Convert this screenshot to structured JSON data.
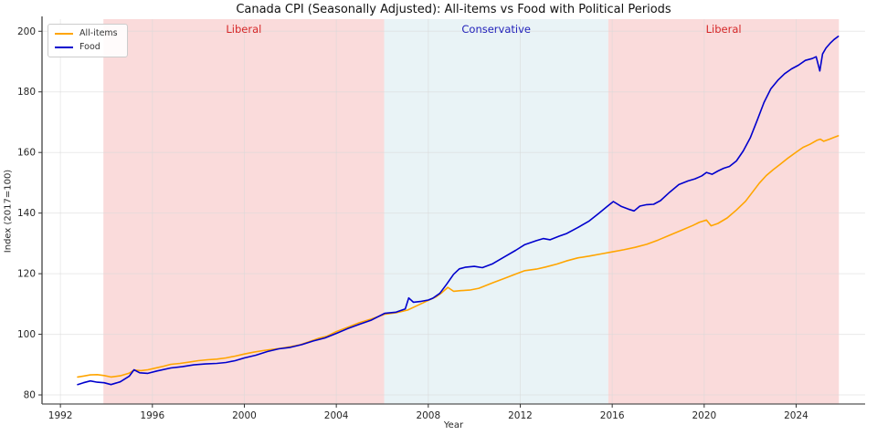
{
  "title": "Canada CPI (Seasonally Adjusted): All-items vs Food with Political Periods",
  "legend": {
    "items": [
      {
        "label": "All-items",
        "color": "#FFA500"
      },
      {
        "label": "Food",
        "color": "#0000CD"
      }
    ]
  },
  "axis": {
    "xlabel": "Year",
    "ylabel": "Index (2017=100)"
  },
  "colors": {
    "liberal_band": "#fadbdb",
    "conservative_band": "#e9f3f6",
    "liberal_text": "#d62728",
    "conservative_text": "#2222bb",
    "all_items_line": "#FFA500",
    "food_line": "#0000CD",
    "grid": "#d9d9d9",
    "spine": "#555555",
    "tick_text": "#262626"
  },
  "chart_data": {
    "type": "line",
    "title": "Canada CPI (Seasonally Adjusted): All-items vs Food with Political Periods",
    "xlabel": "Year",
    "ylabel": "Index (2017=100)",
    "xlim": [
      1991.2,
      2027.0
    ],
    "ylim": [
      77,
      204
    ],
    "x_ticks": [
      1992,
      1996,
      2000,
      2004,
      2008,
      2012,
      2016,
      2020,
      2024
    ],
    "y_ticks": [
      80,
      100,
      120,
      140,
      160,
      180,
      200
    ],
    "grid": true,
    "legend_position": "upper-left",
    "bands": [
      {
        "label": "Liberal",
        "start": 1993.87,
        "end": 2006.08,
        "fill": "#fadbdb",
        "label_color": "#d62728"
      },
      {
        "label": "Conservative",
        "start": 2006.08,
        "end": 2015.83,
        "fill": "#e9f3f6",
        "label_color": "#2222bb"
      },
      {
        "label": "Liberal",
        "start": 2015.83,
        "end": 2025.86,
        "fill": "#fadbdb",
        "label_color": "#d62728"
      }
    ],
    "series": [
      {
        "name": "All-items",
        "color": "#FFA500",
        "points": [
          [
            1992.75,
            85.9
          ],
          [
            1993.0,
            86.2
          ],
          [
            1993.3,
            86.6
          ],
          [
            1993.6,
            86.7
          ],
          [
            1993.9,
            86.4
          ],
          [
            1994.2,
            85.9
          ],
          [
            1994.6,
            86.3
          ],
          [
            1995.0,
            87.2
          ],
          [
            1995.2,
            88.2
          ],
          [
            1995.5,
            88.0
          ],
          [
            1995.8,
            88.3
          ],
          [
            1996.1,
            88.8
          ],
          [
            1996.5,
            89.5
          ],
          [
            1996.8,
            90.1
          ],
          [
            1997.2,
            90.4
          ],
          [
            1997.6,
            90.8
          ],
          [
            1998.0,
            91.3
          ],
          [
            1998.4,
            91.6
          ],
          [
            1998.8,
            91.8
          ],
          [
            1999.2,
            92.2
          ],
          [
            1999.6,
            92.8
          ],
          [
            2000.0,
            93.5
          ],
          [
            2000.4,
            94.1
          ],
          [
            2000.8,
            94.6
          ],
          [
            2001.2,
            95.0
          ],
          [
            2001.6,
            95.4
          ],
          [
            2002.0,
            95.9
          ],
          [
            2002.4,
            96.5
          ],
          [
            2002.8,
            97.5
          ],
          [
            2003.2,
            98.6
          ],
          [
            2003.6,
            99.4
          ],
          [
            2004.0,
            100.9
          ],
          [
            2004.5,
            102.3
          ],
          [
            2005.0,
            103.8
          ],
          [
            2005.5,
            105.0
          ],
          [
            2006.1,
            106.6
          ],
          [
            2006.6,
            107.1
          ],
          [
            2007.1,
            108.0
          ],
          [
            2007.5,
            109.4
          ],
          [
            2008.0,
            111.2
          ],
          [
            2008.35,
            112.4
          ],
          [
            2008.6,
            113.8
          ],
          [
            2008.85,
            115.5
          ],
          [
            2009.1,
            114.2
          ],
          [
            2009.4,
            114.4
          ],
          [
            2009.8,
            114.6
          ],
          [
            2010.2,
            115.2
          ],
          [
            2010.8,
            117.0
          ],
          [
            2011.3,
            118.4
          ],
          [
            2011.8,
            119.9
          ],
          [
            2012.2,
            121.0
          ],
          [
            2012.7,
            121.5
          ],
          [
            2013.1,
            122.2
          ],
          [
            2013.6,
            123.2
          ],
          [
            2014.0,
            124.2
          ],
          [
            2014.5,
            125.2
          ],
          [
            2015.0,
            125.8
          ],
          [
            2015.5,
            126.5
          ],
          [
            2016.0,
            127.2
          ],
          [
            2016.5,
            127.9
          ],
          [
            2017.0,
            128.7
          ],
          [
            2017.5,
            129.7
          ],
          [
            2018.0,
            131.1
          ],
          [
            2018.5,
            132.7
          ],
          [
            2019.0,
            134.3
          ],
          [
            2019.5,
            135.9
          ],
          [
            2019.8,
            137.0
          ],
          [
            2020.1,
            137.7
          ],
          [
            2020.3,
            135.8
          ],
          [
            2020.6,
            136.6
          ],
          [
            2021.0,
            138.4
          ],
          [
            2021.4,
            141.0
          ],
          [
            2021.8,
            143.9
          ],
          [
            2022.1,
            146.9
          ],
          [
            2022.4,
            149.9
          ],
          [
            2022.7,
            152.4
          ],
          [
            2023.0,
            154.3
          ],
          [
            2023.3,
            156.1
          ],
          [
            2023.6,
            157.9
          ],
          [
            2024.0,
            160.1
          ],
          [
            2024.3,
            161.7
          ],
          [
            2024.6,
            162.7
          ],
          [
            2024.9,
            164.0
          ],
          [
            2025.05,
            164.4
          ],
          [
            2025.2,
            163.7
          ],
          [
            2025.45,
            164.4
          ],
          [
            2025.65,
            165.0
          ],
          [
            2025.83,
            165.5
          ]
        ]
      },
      {
        "name": "Food",
        "color": "#0000CD",
        "points": [
          [
            1992.75,
            83.4
          ],
          [
            1993.0,
            84.0
          ],
          [
            1993.3,
            84.6
          ],
          [
            1993.6,
            84.2
          ],
          [
            1993.9,
            84.0
          ],
          [
            1994.2,
            83.4
          ],
          [
            1994.6,
            84.3
          ],
          [
            1995.0,
            86.2
          ],
          [
            1995.2,
            88.3
          ],
          [
            1995.45,
            87.3
          ],
          [
            1995.8,
            87.1
          ],
          [
            1996.2,
            87.9
          ],
          [
            1996.8,
            88.9
          ],
          [
            1997.3,
            89.3
          ],
          [
            1997.8,
            89.9
          ],
          [
            1998.3,
            90.2
          ],
          [
            1998.8,
            90.4
          ],
          [
            1999.2,
            90.7
          ],
          [
            1999.6,
            91.3
          ],
          [
            2000.0,
            92.2
          ],
          [
            2000.5,
            93.1
          ],
          [
            2001.0,
            94.3
          ],
          [
            2001.5,
            95.2
          ],
          [
            2002.0,
            95.7
          ],
          [
            2002.5,
            96.6
          ],
          [
            2003.0,
            97.8
          ],
          [
            2003.5,
            98.8
          ],
          [
            2004.0,
            100.3
          ],
          [
            2004.5,
            101.9
          ],
          [
            2005.0,
            103.3
          ],
          [
            2005.5,
            104.6
          ],
          [
            2006.1,
            106.9
          ],
          [
            2006.6,
            107.3
          ],
          [
            2007.0,
            108.4
          ],
          [
            2007.15,
            112.0
          ],
          [
            2007.35,
            110.6
          ],
          [
            2007.7,
            110.9
          ],
          [
            2008.0,
            111.3
          ],
          [
            2008.2,
            111.9
          ],
          [
            2008.5,
            113.5
          ],
          [
            2008.8,
            116.5
          ],
          [
            2009.1,
            119.8
          ],
          [
            2009.35,
            121.6
          ],
          [
            2009.6,
            122.1
          ],
          [
            2010.0,
            122.4
          ],
          [
            2010.35,
            122.0
          ],
          [
            2010.8,
            123.3
          ],
          [
            2011.3,
            125.5
          ],
          [
            2011.8,
            127.7
          ],
          [
            2012.2,
            129.6
          ],
          [
            2012.7,
            130.9
          ],
          [
            2013.0,
            131.6
          ],
          [
            2013.3,
            131.2
          ],
          [
            2013.7,
            132.4
          ],
          [
            2014.0,
            133.2
          ],
          [
            2014.5,
            135.2
          ],
          [
            2015.0,
            137.4
          ],
          [
            2015.4,
            139.8
          ],
          [
            2015.8,
            142.3
          ],
          [
            2016.05,
            143.8
          ],
          [
            2016.4,
            142.2
          ],
          [
            2016.7,
            141.3
          ],
          [
            2016.95,
            140.7
          ],
          [
            2017.2,
            142.3
          ],
          [
            2017.5,
            142.8
          ],
          [
            2017.8,
            142.9
          ],
          [
            2018.1,
            144.1
          ],
          [
            2018.5,
            146.9
          ],
          [
            2018.9,
            149.4
          ],
          [
            2019.3,
            150.6
          ],
          [
            2019.6,
            151.3
          ],
          [
            2019.9,
            152.3
          ],
          [
            2020.1,
            153.4
          ],
          [
            2020.35,
            152.8
          ],
          [
            2020.6,
            153.9
          ],
          [
            2020.85,
            154.8
          ],
          [
            2021.1,
            155.4
          ],
          [
            2021.4,
            157.2
          ],
          [
            2021.7,
            160.5
          ],
          [
            2022.0,
            164.8
          ],
          [
            2022.3,
            170.5
          ],
          [
            2022.6,
            176.5
          ],
          [
            2022.9,
            181.0
          ],
          [
            2023.2,
            183.8
          ],
          [
            2023.5,
            186.0
          ],
          [
            2023.8,
            187.6
          ],
          [
            2024.1,
            188.8
          ],
          [
            2024.4,
            190.4
          ],
          [
            2024.7,
            191.0
          ],
          [
            2024.87,
            191.6
          ],
          [
            2025.03,
            186.9
          ],
          [
            2025.15,
            192.5
          ],
          [
            2025.3,
            194.5
          ],
          [
            2025.5,
            196.2
          ],
          [
            2025.65,
            197.3
          ],
          [
            2025.83,
            198.3
          ]
        ]
      }
    ]
  }
}
